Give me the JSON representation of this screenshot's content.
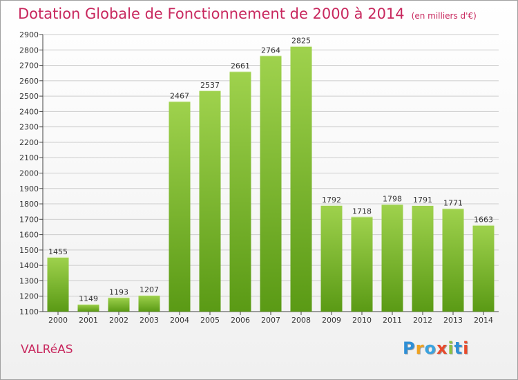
{
  "title": "Dotation Globale de Fonctionnement de 2000 à 2014",
  "unit": "(en milliers d'€)",
  "commune": "VALRéAS",
  "logo": {
    "letters": [
      "P",
      "r",
      "o",
      "x",
      "i",
      "t",
      "i"
    ],
    "colors": [
      "#2e8fd6",
      "#f0a21e",
      "#3aa3e0",
      "#e84a2c",
      "#8cc13f",
      "#2e8fd6",
      "#e84a2c"
    ]
  },
  "colors": {
    "title": "#c8285e",
    "bar_top": "#9fd24d",
    "bar_bottom": "#5a9a15",
    "grid": "#cccccc"
  },
  "chart_data": {
    "type": "bar",
    "title": "Dotation Globale de Fonctionnement de 2000 à 2014",
    "categories": [
      "2000",
      "2001",
      "2002",
      "2003",
      "2004",
      "2005",
      "2006",
      "2007",
      "2008",
      "2009",
      "2010",
      "2011",
      "2012",
      "2013",
      "2014"
    ],
    "values": [
      1455,
      1149,
      1193,
      1207,
      2467,
      2537,
      2661,
      2764,
      2825,
      1792,
      1718,
      1798,
      1791,
      1771,
      1663
    ],
    "ylim": [
      1100,
      2900
    ],
    "ytick_step": 100,
    "grid": true,
    "data_labels": true
  }
}
